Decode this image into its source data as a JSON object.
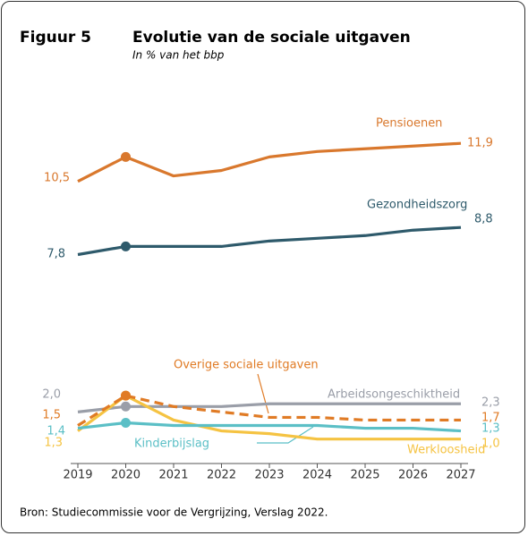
{
  "chart_data": {
    "type": "line",
    "figure_label": "Figuur 5",
    "title": "Evolutie van de sociale uitgaven",
    "subtitle": "In % van het bbp",
    "source": "Bron: Studiecommissie voor de Vergrijzing, Verslag 2022.",
    "categories": [
      "2019",
      "2020",
      "2021",
      "2022",
      "2023",
      "2024",
      "2025",
      "2026",
      "2027"
    ],
    "ylim": [
      0,
      12.5
    ],
    "marker_index": 1,
    "series": [
      {
        "name": "Pensioenen",
        "color": "#d9782d",
        "values": [
          10.5,
          11.4,
          10.7,
          10.9,
          11.4,
          11.6,
          11.7,
          11.8,
          11.9
        ],
        "value_labels": [
          "10,5",
          null,
          null,
          null,
          null,
          null,
          null,
          null,
          "11,9"
        ]
      },
      {
        "name": "Gezondheidszorg",
        "color": "#2e5a6b",
        "values": [
          7.8,
          8.1,
          8.1,
          8.1,
          8.3,
          8.4,
          8.5,
          8.7,
          8.8
        ],
        "value_labels": [
          "7,8",
          null,
          null,
          null,
          null,
          null,
          null,
          null,
          "8,8"
        ]
      },
      {
        "name": "Arbeidsongeschiktheid",
        "color": "#9a9ea8",
        "values": [
          2.0,
          2.2,
          2.2,
          2.2,
          2.3,
          2.3,
          2.3,
          2.3,
          2.3
        ],
        "value_labels": [
          "2,0",
          null,
          null,
          null,
          null,
          null,
          null,
          null,
          "2,3"
        ]
      },
      {
        "name": "Overige sociale uitgaven",
        "color": "#e07b25",
        "dashed": true,
        "values": [
          1.5,
          2.6,
          2.2,
          2.0,
          1.8,
          1.8,
          1.7,
          1.7,
          1.7
        ],
        "value_labels": [
          "1,5",
          null,
          null,
          null,
          null,
          null,
          null,
          null,
          "1,7"
        ]
      },
      {
        "name": "Kinderbijslag",
        "color": "#5bbfc6",
        "values": [
          1.4,
          1.6,
          1.5,
          1.5,
          1.5,
          1.5,
          1.4,
          1.4,
          1.3
        ],
        "value_labels": [
          "1,4",
          null,
          null,
          null,
          null,
          null,
          null,
          null,
          "1,3"
        ]
      },
      {
        "name": "Werkloosheid",
        "color": "#f5c342",
        "values": [
          1.3,
          2.6,
          1.7,
          1.3,
          1.2,
          1.0,
          1.0,
          1.0,
          1.0
        ],
        "value_labels": [
          "1,3",
          null,
          null,
          null,
          null,
          null,
          null,
          null,
          "1,0"
        ]
      }
    ]
  }
}
